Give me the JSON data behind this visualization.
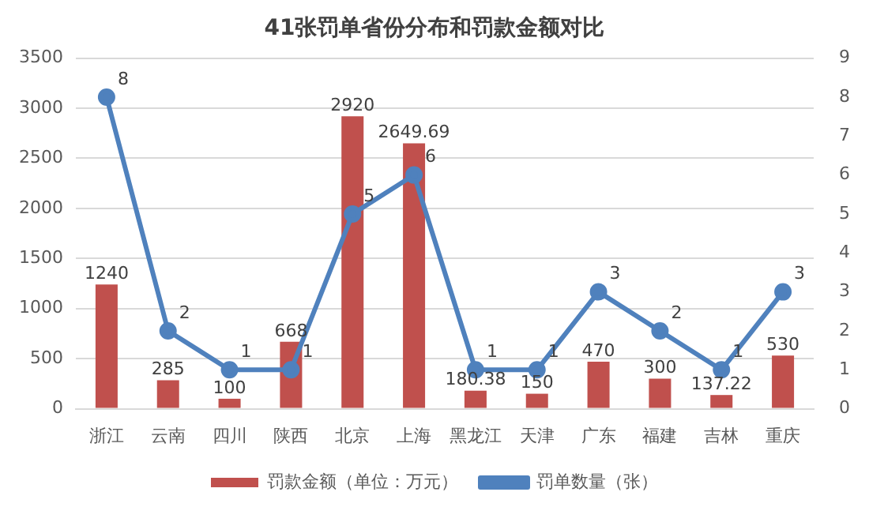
{
  "chart_data": {
    "type": "bar",
    "title": "41张罚单省份分布和罚款金额对比",
    "categories": [
      "浙江",
      "云南",
      "四川",
      "陕西",
      "北京",
      "上海",
      "黑龙江",
      "天津",
      "广东",
      "福建",
      "吉林",
      "重庆"
    ],
    "series": [
      {
        "name": "罚款金额（单位：万元）",
        "color": "#c0504d",
        "values": [
          1240,
          285,
          100,
          668,
          2920,
          2649.69,
          180.38,
          150,
          470,
          300,
          137.22,
          530
        ]
      },
      {
        "name": "罚单数量（张）",
        "type": "line",
        "axis": "y2",
        "color": "#4f81bd",
        "marker": "circle",
        "values": [
          8,
          2,
          1,
          1,
          5,
          6,
          1,
          1,
          3,
          2,
          1,
          3
        ]
      }
    ],
    "ylim": [
      0,
      3500
    ],
    "yticks": [
      0,
      500,
      1000,
      1500,
      2000,
      2500,
      3000,
      3500
    ],
    "y2lim": [
      0,
      9
    ],
    "y2ticks": [
      0,
      1,
      2,
      3,
      4,
      5,
      6,
      7,
      8,
      9
    ],
    "grid": "y",
    "legend": "bottom",
    "data_labels": true
  }
}
